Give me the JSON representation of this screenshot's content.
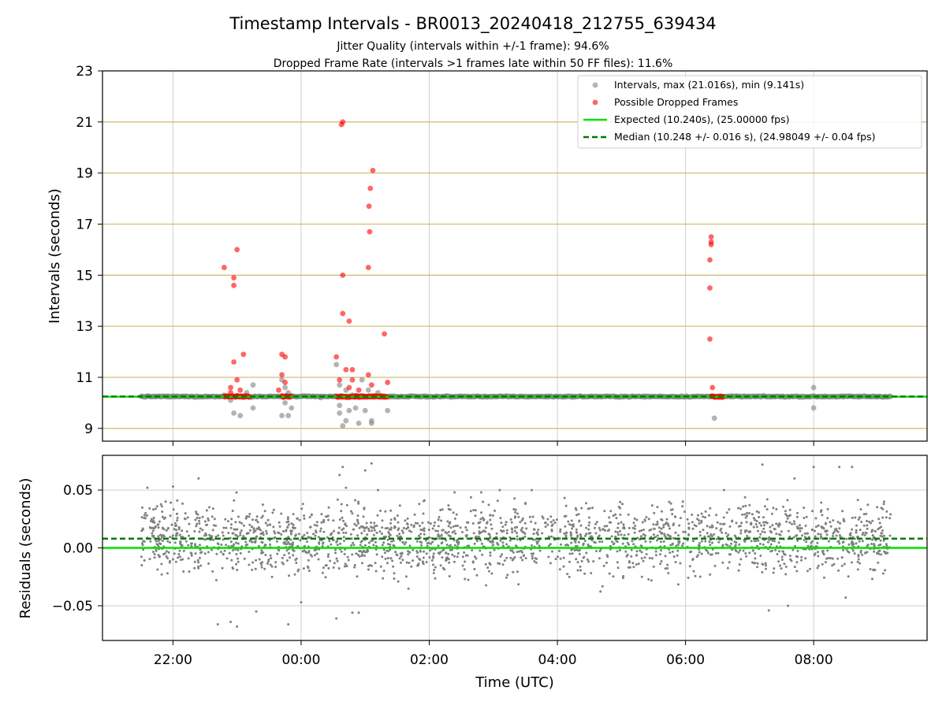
{
  "chart_data": [
    {
      "type": "scatter",
      "title": "Timestamp Intervals - BR0013_20240418_212755_639434",
      "subtitle_lines": [
        "Jitter Quality (intervals within +/-1 frame): 94.6%",
        "Dropped Frame Rate (intervals >1 frames late within 50 FF files): 11.6%"
      ],
      "ylabel": "Intervals (seconds)",
      "ylim": [
        8.5,
        23
      ],
      "yticks": [
        9,
        11,
        13,
        15,
        17,
        19,
        21,
        23
      ],
      "xlim_hours": [
        20.9,
        33.77
      ],
      "x_data_range_hours": [
        21.5,
        33.2
      ],
      "horizontal_reference_lines": [
        9,
        11,
        13,
        15,
        17,
        19,
        21
      ],
      "expected_interval": 10.24,
      "median_interval": 10.248,
      "legend_placement": "upper right",
      "legend": [
        "Intervals, max (21.016s), min (9.141s)",
        "Possible Dropped Frames",
        "Expected (10.240s), (25.00000 fps)",
        "Median (10.248 +/- 0.016 s), (24.98049 +/- 0.04 fps)"
      ],
      "series": [
        {
          "name": "Intervals, max (21.016s), min (9.141s)",
          "color": "#808080",
          "points": [
            [
              22.8,
              10.3
            ],
            [
              22.9,
              10.1
            ],
            [
              22.95,
              9.6
            ],
            [
              23.05,
              9.5
            ],
            [
              23.15,
              10.4
            ],
            [
              23.25,
              10.7
            ],
            [
              23.25,
              9.8
            ],
            [
              23.7,
              10.9
            ],
            [
              23.7,
              9.5
            ],
            [
              23.75,
              10.6
            ],
            [
              23.75,
              10.0
            ],
            [
              23.8,
              9.5
            ],
            [
              23.8,
              10.4
            ],
            [
              23.85,
              9.8
            ],
            [
              24.3,
              10.2
            ],
            [
              24.55,
              11.5
            ],
            [
              24.6,
              9.6
            ],
            [
              24.6,
              10.7
            ],
            [
              24.6,
              9.9
            ],
            [
              24.65,
              9.1
            ],
            [
              24.7,
              10.5
            ],
            [
              24.7,
              9.3
            ],
            [
              24.75,
              9.7
            ],
            [
              24.8,
              10.3
            ],
            [
              24.85,
              9.8
            ],
            [
              24.9,
              9.2
            ],
            [
              24.95,
              10.9
            ],
            [
              25.0,
              9.7
            ],
            [
              25.05,
              10.5
            ],
            [
              25.1,
              9.3
            ],
            [
              25.1,
              9.2
            ],
            [
              25.2,
              10.4
            ],
            [
              25.35,
              9.7
            ],
            [
              30.45,
              9.4
            ],
            [
              32.0,
              10.6
            ],
            [
              32.0,
              9.8
            ]
          ]
        },
        {
          "name": "Possible Dropped Frames",
          "color": "#ff0000",
          "points": [
            [
              22.8,
              15.3
            ],
            [
              22.95,
              14.9
            ],
            [
              22.95,
              14.6
            ],
            [
              23.0,
              16.0
            ],
            [
              22.95,
              11.6
            ],
            [
              23.1,
              11.9
            ],
            [
              22.9,
              10.6
            ],
            [
              23.0,
              10.9
            ],
            [
              23.05,
              10.5
            ],
            [
              22.9,
              10.4
            ],
            [
              23.7,
              11.9
            ],
            [
              23.75,
              11.8
            ],
            [
              23.7,
              11.1
            ],
            [
              23.75,
              10.8
            ],
            [
              23.65,
              10.5
            ],
            [
              24.55,
              11.8
            ],
            [
              24.6,
              10.9
            ],
            [
              24.65,
              15.0
            ],
            [
              24.65,
              13.5
            ],
            [
              24.65,
              21.0
            ],
            [
              24.63,
              20.9
            ],
            [
              24.75,
              13.2
            ],
            [
              24.7,
              11.3
            ],
            [
              24.75,
              10.6
            ],
            [
              24.8,
              11.3
            ],
            [
              24.8,
              10.9
            ],
            [
              24.9,
              10.5
            ],
            [
              25.05,
              15.3
            ],
            [
              25.05,
              11.1
            ],
            [
              25.1,
              10.7
            ],
            [
              25.08,
              18.4
            ],
            [
              25.06,
              17.7
            ],
            [
              25.07,
              16.7
            ],
            [
              25.12,
              19.1
            ],
            [
              25.3,
              12.7
            ],
            [
              25.35,
              10.8
            ],
            [
              30.4,
              16.5
            ],
            [
              30.4,
              16.3
            ],
            [
              30.4,
              16.2
            ],
            [
              30.38,
              15.6
            ],
            [
              30.38,
              14.5
            ],
            [
              30.38,
              12.5
            ],
            [
              30.42,
              10.6
            ]
          ],
          "dense_bands_hours_at_interval_10.25": [
            [
              22.8,
              23.2
            ],
            [
              23.7,
              23.85
            ],
            [
              24.55,
              25.35
            ],
            [
              30.4,
              30.6
            ]
          ]
        }
      ]
    },
    {
      "type": "scatter",
      "ylabel": "Residuals (seconds)",
      "xlabel": "Time (UTC)",
      "ylim": [
        -0.08,
        0.08
      ],
      "yticks": [
        -0.05,
        0.0,
        0.05
      ],
      "ytick_labels": [
        "−0.05",
        "0.00",
        "0.05"
      ],
      "xlim_hours": [
        20.9,
        33.77
      ],
      "xticks_hours": [
        22,
        24,
        26,
        28,
        30,
        32
      ],
      "xtick_labels": [
        "22:00",
        "00:00",
        "02:00",
        "04:00",
        "06:00",
        "08:00"
      ],
      "expected_residual": 0.0,
      "median_residual": 0.008,
      "grid": true,
      "series": [
        {
          "name": "",
          "color": "#808080",
          "points_generated": {
            "count": 2200,
            "x_range_hours": [
              21.5,
              33.2
            ],
            "center": 0.008,
            "typical_spread": 0.02
          },
          "points": [
            [
              21.6,
              0.052
            ],
            [
              22.0,
              0.053
            ],
            [
              22.4,
              0.06
            ],
            [
              22.7,
              -0.066
            ],
            [
              22.9,
              -0.064
            ],
            [
              23.0,
              -0.068
            ],
            [
              23.3,
              -0.055
            ],
            [
              23.8,
              -0.066
            ],
            [
              24.0,
              -0.047
            ],
            [
              24.6,
              0.063
            ],
            [
              24.65,
              0.07
            ],
            [
              24.7,
              0.052
            ],
            [
              24.55,
              -0.061
            ],
            [
              24.8,
              -0.056
            ],
            [
              24.9,
              -0.056
            ],
            [
              25.1,
              0.073
            ],
            [
              25.0,
              0.067
            ],
            [
              25.2,
              0.05
            ],
            [
              27.1,
              0.05
            ],
            [
              27.6,
              0.05
            ],
            [
              30.6,
              0.05
            ],
            [
              32.0,
              0.07
            ],
            [
              31.2,
              0.072
            ],
            [
              31.7,
              0.06
            ],
            [
              31.6,
              -0.05
            ],
            [
              31.3,
              -0.054
            ],
            [
              32.4,
              0.07
            ],
            [
              32.6,
              0.07
            ],
            [
              32.5,
              -0.043
            ],
            [
              33.1,
              0.04
            ]
          ]
        }
      ]
    }
  ],
  "legend_icons": [
    "dot-marker-gray",
    "dot-marker-red",
    "solid-line-lime",
    "dashed-line-green"
  ],
  "colors": {
    "intervals": "#808080",
    "dropped": "#ff0000",
    "expected": "#00e000",
    "median": "#007a00",
    "ref_line": "#d4bd7c",
    "grid": "#cfcfcf"
  }
}
